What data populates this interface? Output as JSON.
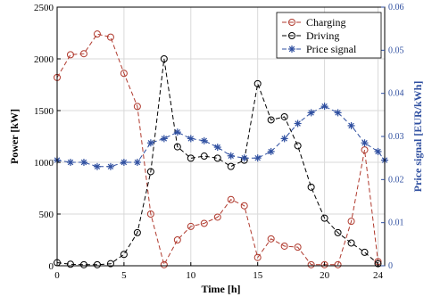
{
  "chart_data": {
    "type": "line",
    "xlabel": "Time [h]",
    "ylabel": "Power [kW]",
    "y2label": "Price signal [EUR/kWh]",
    "xlim": [
      0,
      24.5
    ],
    "ylim": [
      0,
      2500
    ],
    "y2lim": [
      0,
      0.06
    ],
    "xticks": [
      0,
      5,
      10,
      15,
      20,
      24
    ],
    "yticks": [
      0,
      500,
      1000,
      1500,
      2000,
      2500
    ],
    "y2ticks": [
      0,
      0.01,
      0.02,
      0.03,
      0.04,
      0.05,
      0.06
    ],
    "y2ticklabels": [
      "0",
      "0.01",
      "0.02",
      "0.03",
      "0.04",
      "0.05",
      "0.06"
    ],
    "grid": true,
    "legend_position": "top-right",
    "x": [
      0,
      1,
      2,
      3,
      4,
      5,
      6,
      7,
      8,
      9,
      10,
      11,
      12,
      13,
      14,
      15,
      16,
      17,
      18,
      19,
      20,
      21,
      22,
      23,
      24,
      24.5
    ],
    "series": [
      {
        "name": "Charging",
        "axis": "left",
        "color": "#b03a2e",
        "style": "dashed",
        "marker": "circle",
        "values": [
          1820,
          2040,
          2050,
          2240,
          2210,
          1860,
          1540,
          500,
          10,
          250,
          380,
          410,
          470,
          640,
          580,
          80,
          260,
          190,
          180,
          10,
          10,
          10,
          430,
          1120,
          40,
          null
        ]
      },
      {
        "name": "Driving",
        "axis": "left",
        "color": "#000000",
        "style": "dashed",
        "marker": "circle",
        "values": [
          30,
          15,
          10,
          10,
          20,
          110,
          320,
          910,
          2000,
          1150,
          1040,
          1060,
          1040,
          960,
          1020,
          1760,
          1410,
          1440,
          1160,
          760,
          460,
          320,
          220,
          130,
          20,
          null
        ]
      },
      {
        "name": "Price signal",
        "axis": "right",
        "color": "#2f4fa0",
        "style": "dashed",
        "marker": "asterisk",
        "values": [
          0.0245,
          0.024,
          0.024,
          0.023,
          0.023,
          0.024,
          0.024,
          0.0285,
          0.0295,
          0.031,
          0.0295,
          0.029,
          0.0275,
          0.0255,
          0.025,
          0.025,
          0.0265,
          0.0295,
          0.033,
          0.0355,
          0.037,
          0.0355,
          0.0325,
          0.0285,
          0.0265,
          0.0245
        ]
      }
    ]
  }
}
